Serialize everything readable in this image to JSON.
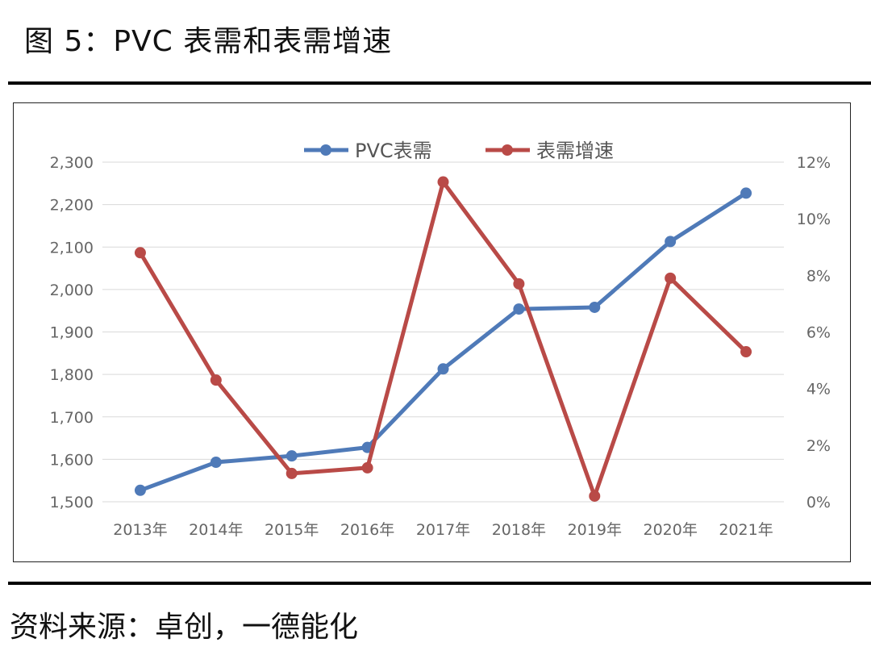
{
  "figure": {
    "title": "图 5：PVC 表需和表需增速",
    "source": "资料来源：卓创，一德能化"
  },
  "chart_data": {
    "type": "line",
    "categories": [
      "2013年",
      "2014年",
      "2015年",
      "2016年",
      "2017年",
      "2018年",
      "2019年",
      "2020年",
      "2021年"
    ],
    "series": [
      {
        "name": "PVC表需",
        "axis": "left",
        "color": "#4f7ab8",
        "values": [
          1527,
          1593,
          1608,
          1628,
          1813,
          1954,
          1958,
          2113,
          2227
        ]
      },
      {
        "name": "表需增速",
        "axis": "right",
        "color": "#b94a47",
        "values": [
          0.088,
          0.043,
          0.01,
          0.012,
          0.113,
          0.077,
          0.002,
          0.079,
          0.053
        ]
      }
    ],
    "y_left": {
      "min": 1500,
      "max": 2300,
      "step": 100,
      "tick_labels": [
        "1,500",
        "1,600",
        "1,700",
        "1,800",
        "1,900",
        "2,000",
        "2,100",
        "2,200",
        "2,300"
      ]
    },
    "y_right": {
      "min": 0,
      "max": 0.12,
      "step": 0.02,
      "tick_labels": [
        "0%",
        "2%",
        "4%",
        "6%",
        "8%",
        "10%",
        "12%"
      ]
    },
    "legend": {
      "position": "top-center"
    },
    "grid": true
  }
}
